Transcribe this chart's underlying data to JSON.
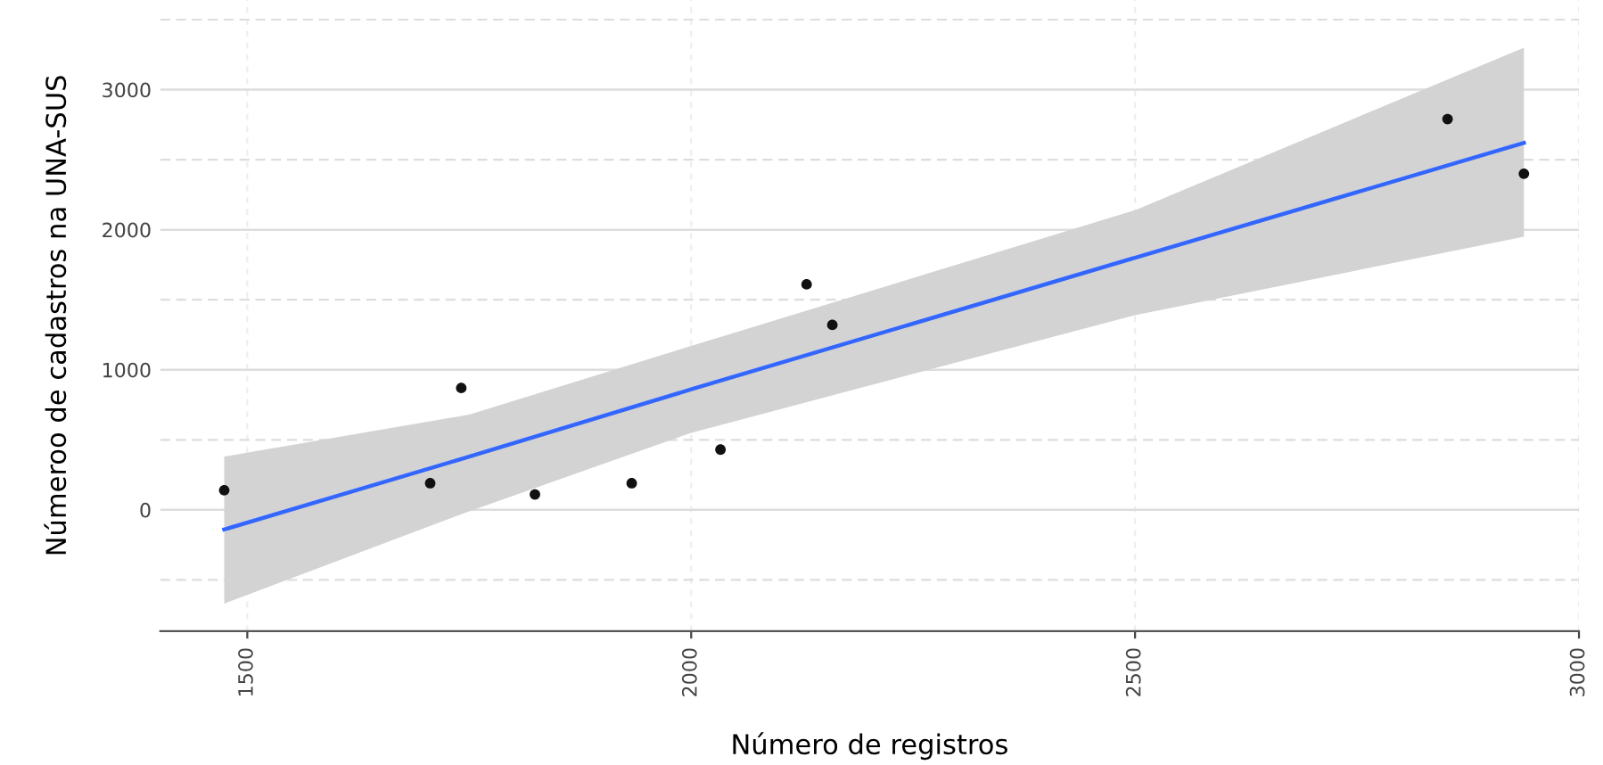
{
  "chart_data": {
    "type": "scatter",
    "xlabel": "Número de registros",
    "ylabel": "Númeroo de cadastros na UNA-SUS",
    "xlim": [
      1402,
      3000
    ],
    "xticks": [
      1500,
      2000,
      2500,
      3000
    ],
    "ylim": [
      -866,
      3640
    ],
    "yticks": [
      0,
      1000,
      2000,
      3000
    ],
    "grid": true,
    "series": [
      {
        "marker": "circle",
        "color": "#111111",
        "x": [
          1474,
          1706,
          1741,
          1824,
          1933,
          2033,
          2130,
          2159,
          2852,
          2938
        ],
        "values": [
          140,
          190,
          870,
          110,
          190,
          430,
          1610,
          1320,
          2790,
          2400
        ]
      },
      {
        "type": "line",
        "marker": "none",
        "color": "#3366ff",
        "x": [
          1474,
          1750,
          2000,
          2500,
          2938
        ],
        "values": [
          -140,
          380,
          860,
          1800,
          2620
        ],
        "lower": [
          -670,
          -10,
          550,
          1390,
          1950
        ],
        "upper": [
          380,
          680,
          1170,
          2140,
          3300
        ]
      }
    ]
  }
}
